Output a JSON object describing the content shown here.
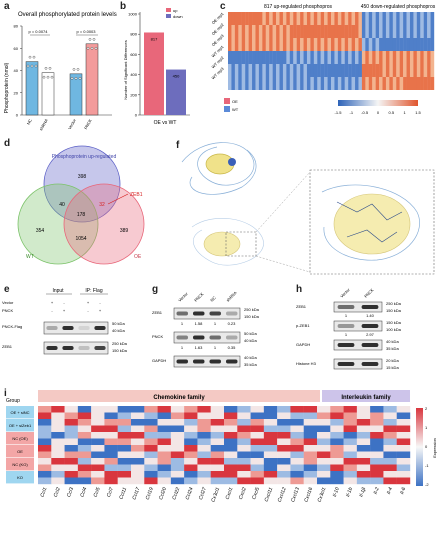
{
  "panel_letters": [
    "a",
    "b",
    "c",
    "d",
    "e",
    "f",
    "g",
    "h",
    "i"
  ],
  "panel_a": {
    "title": "Overall phosphorylated protein levels",
    "ylabel": "Phosphoprotein (nmol)",
    "yticks": [
      "0",
      "20",
      "40",
      "60",
      "80"
    ],
    "groups": [
      "NC",
      "shRNA",
      "Vector",
      "PNCK"
    ],
    "pvalues": [
      "p = 0.0074",
      "p = 0.0003"
    ],
    "colors": {
      "NC": "#6fb7e1",
      "shRNA": "#ffffff",
      "Vector": "#6fb7e1",
      "PNCK": "#f39b9b"
    },
    "chart_data": {
      "type": "bar",
      "categories": [
        "NC",
        "shRNA",
        "Vector",
        "PNCK"
      ],
      "values": [
        48,
        38,
        37,
        64
      ],
      "ylim": [
        0,
        80
      ]
    }
  },
  "panel_b": {
    "ylabel": "Number of Significant Differences",
    "xlabel": "OE vs WT",
    "legend": [
      "up",
      "down"
    ],
    "yticks": [
      "0",
      "200",
      "400",
      "600",
      "800",
      "1000"
    ],
    "up_label": "817",
    "down_label": "450",
    "colors": {
      "up": "#e8677a",
      "down": "#6d6dbd"
    },
    "chart_data": {
      "type": "bar",
      "categories": [
        "OE vs WT"
      ],
      "series": [
        {
          "name": "up",
          "values": [
            817
          ]
        },
        {
          "name": "down",
          "values": [
            450
          ]
        }
      ],
      "ylim": [
        0,
        1000
      ]
    }
  },
  "panel_c": {
    "header_up": "817 up-regulated phosphopros",
    "header_down": "450 down-regulated phosphopros",
    "rows": [
      "OE rep1",
      "OE rep2",
      "OE rep3",
      "WT rep1",
      "WT rep2",
      "WT rep3"
    ],
    "scale_ticks": [
      "-1.5",
      "-1",
      "-0.5",
      "0",
      "0.5",
      "1",
      "1.5"
    ],
    "legend_labels": [
      "OE",
      "WT"
    ],
    "chart_data": {
      "type": "heatmap",
      "rows": [
        "OE rep1",
        "OE rep2",
        "OE rep3",
        "WT rep1",
        "WT rep2",
        "WT rep3"
      ],
      "column_groups": [
        {
          "name": "817 up-regulated phosphopros",
          "count": 817
        },
        {
          "name": "450 down-regulated phosphopros",
          "count": 450
        }
      ],
      "range": [
        -1.5,
        1.5
      ]
    }
  },
  "panel_d": {
    "labels": {
      "top": "Phosphoprotein up-regulated",
      "left": "WT",
      "right": "OE",
      "callout": "ZEB1"
    },
    "values": {
      "top_only": "398",
      "wt_only": "354",
      "oe_only": "389",
      "top_wt": "40",
      "top_oe": "32",
      "center": "178",
      "wt_oe": "1054"
    },
    "colors": {
      "top": "#5b5fc7",
      "wt": "#7cc36a",
      "oe": "#e8677a"
    }
  },
  "panel_e": {
    "col_groups": [
      "Input",
      "IP: Flag"
    ],
    "row_labels": [
      "Vector",
      "PNCK"
    ],
    "signs": [
      [
        "+",
        "-",
        "+",
        "-"
      ],
      [
        "-",
        "+",
        "-",
        "+"
      ]
    ],
    "blot_labels": [
      "PNCK-Flag",
      "ZEB1"
    ],
    "markers": [
      [
        "50 kDa",
        "40 kDa"
      ],
      [
        "250 kDa",
        "150 kDa"
      ]
    ]
  },
  "panel_g": {
    "lanes": [
      "Vector",
      "PNCK",
      "NC",
      "shRNA"
    ],
    "blots": [
      {
        "name": "ZEB1",
        "quant": [
          "1",
          "1.58",
          "1",
          "0.23"
        ],
        "markers": [
          "250 kDa",
          "150 kDa"
        ]
      },
      {
        "name": "PNCK",
        "quant": [
          "1",
          "1.63",
          "1",
          "0.35"
        ],
        "markers": [
          "50 kDa",
          "40 kDa"
        ]
      },
      {
        "name": "GAPDH",
        "quant": [],
        "markers": [
          "40 kDa",
          "35 kDa"
        ]
      }
    ]
  },
  "panel_h": {
    "lanes": [
      "Vector",
      "PNCK"
    ],
    "blots": [
      {
        "name": "ZEB1",
        "quant": [
          "1",
          "1.40"
        ],
        "markers": [
          "250 kDa",
          "150 kDa"
        ]
      },
      {
        "name": "p-ZEB1",
        "quant": [
          "1",
          "2.97"
        ],
        "markers": [
          "150 kDa",
          "100 kDa"
        ]
      },
      {
        "name": "GAPDH",
        "quant": [],
        "markers": [
          "40 kDa",
          "35 kDa"
        ]
      },
      {
        "name": "Histone H3",
        "quant": [],
        "markers": [
          "20 kDa",
          "15 kDa"
        ]
      }
    ]
  },
  "panel_i": {
    "group_label": "Group",
    "families": [
      "Chemokine family",
      "Interleukin family"
    ],
    "family_colors": {
      "chemokine": "#f4c9c4",
      "interleukin": "#cdc4ea"
    },
    "row_groups": [
      {
        "label": "OE + siNC",
        "color": "#9fd6f0"
      },
      {
        "label": "OE + siZeb1",
        "color": "#9fd6f0"
      },
      {
        "label": "NC (OE)",
        "color": "#f3a6a6"
      },
      {
        "label": "OE",
        "color": "#f3a6a6"
      },
      {
        "label": "NC (KO)",
        "color": "#f3a6a6"
      },
      {
        "label": "KO",
        "color": "#9fd6f0"
      }
    ],
    "genes": [
      "Ccl1",
      "Ccl2",
      "Ccl3",
      "Ccl4",
      "Ccl5",
      "Ccl7",
      "Ccl11",
      "Ccl17",
      "Ccl19",
      "Ccl20",
      "Ccl22",
      "Ccl24",
      "Ccl27",
      "Cx3cl1",
      "Cxcl1",
      "Cxcl2",
      "Cxcl5",
      "Cxcl11",
      "Cxcl12",
      "Cxcl13",
      "Cxcl16",
      "Cx3cl1",
      "Il-10",
      "Il-1b",
      "Il-1β",
      "Il-2",
      "Il-4",
      "Il-6"
    ],
    "colorbar_label": "Expression",
    "colorbar_ticks": [
      "2",
      "1",
      "0",
      "-1",
      "-2"
    ]
  }
}
